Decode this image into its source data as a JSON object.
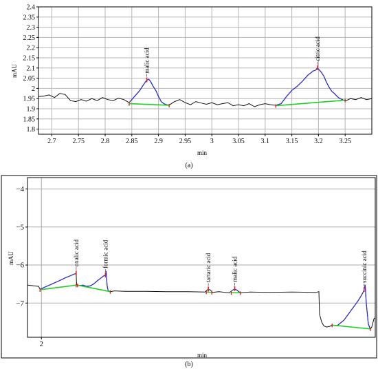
{
  "chart_data": [
    {
      "type": "line",
      "panel_label": "(a)",
      "xlabel": "min",
      "ylabel": "mAU",
      "xlim": [
        2.675,
        3.3
      ],
      "ylim": [
        1.775,
        2.4
      ],
      "xticks": [
        2.7,
        2.75,
        2.8,
        2.85,
        2.9,
        2.95,
        3,
        3.05,
        3.1,
        3.15,
        3.2,
        3.25
      ],
      "xtick_labels": [
        "2.7",
        "2.75",
        "2.8",
        "2.85",
        "2.9",
        "2.95",
        "3",
        "3.05",
        "3.1",
        "3.15",
        "3.2",
        "3.25"
      ],
      "yticks": [
        1.8,
        1.85,
        1.9,
        1.95,
        2.0,
        2.05,
        2.1,
        2.15,
        2.2,
        2.25,
        2.3,
        2.35,
        2.4
      ],
      "ytick_labels": [
        "1.8",
        "1.85",
        "1.9",
        "1.95",
        "2",
        "2.05",
        "2.1",
        "2.15",
        "2.2",
        "2.25",
        "2.3",
        "2.35",
        "2.4"
      ],
      "grid": true,
      "peaks": [
        {
          "label": "malic acid",
          "x": 2.878,
          "y": 2.04
        },
        {
          "label": "citric acid",
          "x": 3.198,
          "y": 2.1
        }
      ],
      "baselines": [
        {
          "x": [
            2.845,
            2.92
          ],
          "y": [
            1.925,
            1.917
          ]
        },
        {
          "x": [
            3.12,
            3.25
          ],
          "y": [
            1.915,
            1.942
          ]
        }
      ],
      "signal": {
        "x": [
          2.675,
          2.685,
          2.695,
          2.705,
          2.715,
          2.725,
          2.735,
          2.745,
          2.755,
          2.765,
          2.775,
          2.785,
          2.795,
          2.805,
          2.815,
          2.825,
          2.835,
          2.845,
          2.85,
          2.855,
          2.86,
          2.865,
          2.87,
          2.875,
          2.878,
          2.882,
          2.886,
          2.89,
          2.895,
          2.9,
          2.905,
          2.91,
          2.915,
          2.92,
          2.93,
          2.94,
          2.95,
          2.96,
          2.97,
          2.98,
          2.99,
          3.0,
          3.01,
          3.02,
          3.03,
          3.04,
          3.05,
          3.06,
          3.07,
          3.08,
          3.09,
          3.1,
          3.11,
          3.12,
          3.13,
          3.14,
          3.15,
          3.16,
          3.17,
          3.175,
          3.18,
          3.185,
          3.19,
          3.195,
          3.198,
          3.2,
          3.205,
          3.21,
          3.215,
          3.22,
          3.225,
          3.23,
          3.235,
          3.24,
          3.245,
          3.25,
          3.26,
          3.27,
          3.28,
          3.29,
          3.3
        ],
        "y": [
          1.96,
          1.962,
          1.968,
          1.955,
          1.975,
          1.97,
          1.94,
          1.935,
          1.945,
          1.937,
          1.95,
          1.94,
          1.955,
          1.945,
          1.94,
          1.952,
          1.945,
          1.93,
          1.945,
          1.96,
          1.975,
          1.99,
          2.01,
          2.03,
          2.04,
          2.045,
          2.03,
          2.01,
          1.99,
          1.96,
          1.935,
          1.925,
          1.92,
          1.918,
          1.935,
          1.945,
          1.93,
          1.92,
          1.935,
          1.928,
          1.922,
          1.93,
          1.92,
          1.925,
          1.93,
          1.915,
          1.92,
          1.915,
          1.925,
          1.91,
          1.92,
          1.925,
          1.92,
          1.917,
          1.925,
          1.96,
          1.99,
          2.01,
          2.035,
          2.05,
          2.065,
          2.075,
          2.085,
          2.09,
          2.1,
          2.095,
          2.08,
          2.06,
          2.03,
          2.005,
          1.985,
          1.975,
          1.96,
          1.95,
          1.945,
          1.938,
          1.95,
          1.945,
          1.955,
          1.945,
          1.95
        ]
      }
    },
    {
      "type": "line",
      "panel_label": "(b)",
      "xlabel": "min",
      "ylabel": "mAU",
      "xlim": [
        1.8,
        6.8
      ],
      "ylim": [
        -7.9,
        -3.7
      ],
      "xticks": [
        2
      ],
      "xtick_labels": [
        "2"
      ],
      "yticks": [
        -7,
        -6,
        -5,
        -4
      ],
      "ytick_labels": [
        "−7",
        "−6",
        "−5",
        "−4"
      ],
      "grid": true,
      "peaks": [
        {
          "label": "oxalic acid",
          "x": 2.5,
          "y": -6.22
        },
        {
          "label": "formic acid",
          "x": 2.92,
          "y": -6.27
        },
        {
          "label": "tartaric acid",
          "x": 4.4,
          "y": -6.64
        },
        {
          "label": "malic acid",
          "x": 4.78,
          "y": -6.63
        },
        {
          "label": "succinic acid",
          "x": 6.64,
          "y": -6.65
        }
      ],
      "baselines": [
        {
          "x": [
            1.98,
            2.5
          ],
          "y": [
            -6.65,
            -6.53
          ]
        },
        {
          "x": [
            2.52,
            2.99
          ],
          "y": [
            -6.53,
            -6.7
          ]
        },
        {
          "x": [
            4.37,
            4.45
          ],
          "y": [
            -6.71,
            -6.72
          ]
        },
        {
          "x": [
            4.73,
            4.86
          ],
          "y": [
            -6.73,
            -6.73
          ]
        },
        {
          "x": [
            6.18,
            6.73
          ],
          "y": [
            -7.58,
            -7.68
          ]
        }
      ],
      "signal": {
        "x": [
          1.8,
          1.9,
          1.96,
          1.98,
          2.05,
          2.15,
          2.25,
          2.35,
          2.42,
          2.47,
          2.5,
          2.505,
          2.51,
          2.515,
          2.55,
          2.6,
          2.65,
          2.7,
          2.75,
          2.8,
          2.85,
          2.9,
          2.92,
          2.93,
          2.945,
          2.96,
          2.99,
          3.05,
          3.2,
          3.5,
          3.8,
          4.1,
          4.35,
          4.38,
          4.4,
          4.43,
          4.46,
          4.55,
          4.7,
          4.75,
          4.78,
          4.81,
          4.86,
          5.0,
          5.3,
          5.6,
          5.95,
          5.99,
          5.995,
          6.0,
          6.03,
          6.06,
          6.1,
          6.15,
          6.18,
          6.25,
          6.35,
          6.45,
          6.55,
          6.6,
          6.63,
          6.64,
          6.655,
          6.67,
          6.7,
          6.73,
          6.75,
          6.78,
          6.8
        ],
        "y": [
          -6.53,
          -6.55,
          -6.56,
          -6.64,
          -6.58,
          -6.5,
          -6.42,
          -6.33,
          -6.28,
          -6.24,
          -6.22,
          -6.45,
          -6.52,
          -6.53,
          -6.54,
          -6.53,
          -6.56,
          -6.55,
          -6.5,
          -6.42,
          -6.35,
          -6.28,
          -6.27,
          -6.16,
          -6.55,
          -6.68,
          -6.7,
          -6.68,
          -6.69,
          -6.69,
          -6.7,
          -6.7,
          -6.71,
          -6.66,
          -6.64,
          -6.66,
          -6.72,
          -6.7,
          -6.73,
          -6.66,
          -6.63,
          -6.66,
          -6.73,
          -6.71,
          -6.72,
          -6.71,
          -6.72,
          -6.7,
          -7.02,
          -7.3,
          -7.5,
          -7.6,
          -7.63,
          -7.61,
          -7.58,
          -7.6,
          -7.45,
          -7.2,
          -6.95,
          -6.8,
          -6.7,
          -6.65,
          -6.52,
          -6.97,
          -7.55,
          -7.69,
          -7.63,
          -7.42,
          -7.38
        ]
      }
    }
  ]
}
